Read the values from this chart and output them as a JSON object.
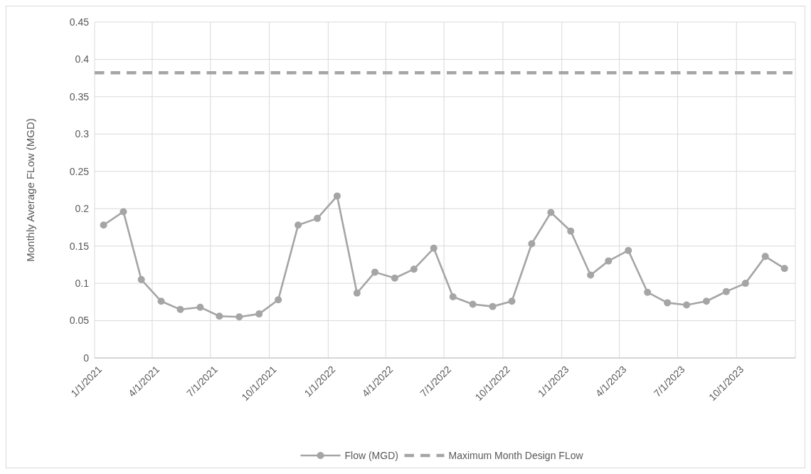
{
  "chart_data": {
    "type": "line",
    "ylabel": "Monthly Average FLow (MGD)",
    "x": [
      "2021-01-15",
      "2021-02-15",
      "2021-03-15",
      "2021-04-15",
      "2021-05-15",
      "2021-06-15",
      "2021-07-15",
      "2021-08-15",
      "2021-09-15",
      "2021-10-15",
      "2021-11-15",
      "2021-12-15",
      "2022-01-15",
      "2022-02-15",
      "2022-03-15",
      "2022-04-15",
      "2022-05-15",
      "2022-06-15",
      "2022-07-15",
      "2022-08-15",
      "2022-09-15",
      "2022-10-15",
      "2022-11-15",
      "2022-12-15",
      "2023-01-15",
      "2023-02-15",
      "2023-03-15",
      "2023-04-15",
      "2023-05-15",
      "2023-06-15",
      "2023-07-15",
      "2023-08-15",
      "2023-09-15",
      "2023-10-15",
      "2023-11-15",
      "2023-12-15"
    ],
    "series": [
      {
        "name": "Flow (MGD)",
        "color": "#a5a5a5",
        "values": [
          0.178,
          0.196,
          0.105,
          0.076,
          0.065,
          0.068,
          0.056,
          0.055,
          0.059,
          0.078,
          0.178,
          0.187,
          0.217,
          0.087,
          0.115,
          0.107,
          0.119,
          0.147,
          0.082,
          0.072,
          0.069,
          0.076,
          0.153,
          0.195,
          0.17,
          0.111,
          0.13,
          0.144,
          0.088,
          0.074,
          0.071,
          0.076,
          0.089,
          0.1,
          0.136,
          0.12
        ]
      }
    ],
    "ref_lines": [
      {
        "axis": "y",
        "value": 0.382,
        "label": "Maximum Month Design FLow",
        "color": "#a5a5a5",
        "line_style": "dashed"
      }
    ],
    "xlim": [
      "2021-01-01",
      "2024-01-01"
    ],
    "xticks": [
      {
        "value": "2021-01-01",
        "label": "1/1/2021"
      },
      {
        "value": "2021-04-01",
        "label": "4/1/2021"
      },
      {
        "value": "2021-07-01",
        "label": "7/1/2021"
      },
      {
        "value": "2021-10-01",
        "label": "10/1/2021"
      },
      {
        "value": "2022-01-01",
        "label": "1/1/2022"
      },
      {
        "value": "2022-04-01",
        "label": "4/1/2022"
      },
      {
        "value": "2022-07-01",
        "label": "7/1/2022"
      },
      {
        "value": "2022-10-01",
        "label": "10/1/2022"
      },
      {
        "value": "2023-01-01",
        "label": "1/1/2023"
      },
      {
        "value": "2023-04-01",
        "label": "4/1/2023"
      },
      {
        "value": "2023-07-01",
        "label": "7/1/2023"
      },
      {
        "value": "2023-10-01",
        "label": "10/1/2023"
      }
    ],
    "ylim": [
      0,
      0.45
    ],
    "yticks": [
      0,
      0.05,
      0.1,
      0.15,
      0.2,
      0.25,
      0.3,
      0.35,
      0.4,
      0.45
    ],
    "grid": true,
    "legend": "bottom",
    "marker": "circle",
    "line_style": "solid"
  }
}
